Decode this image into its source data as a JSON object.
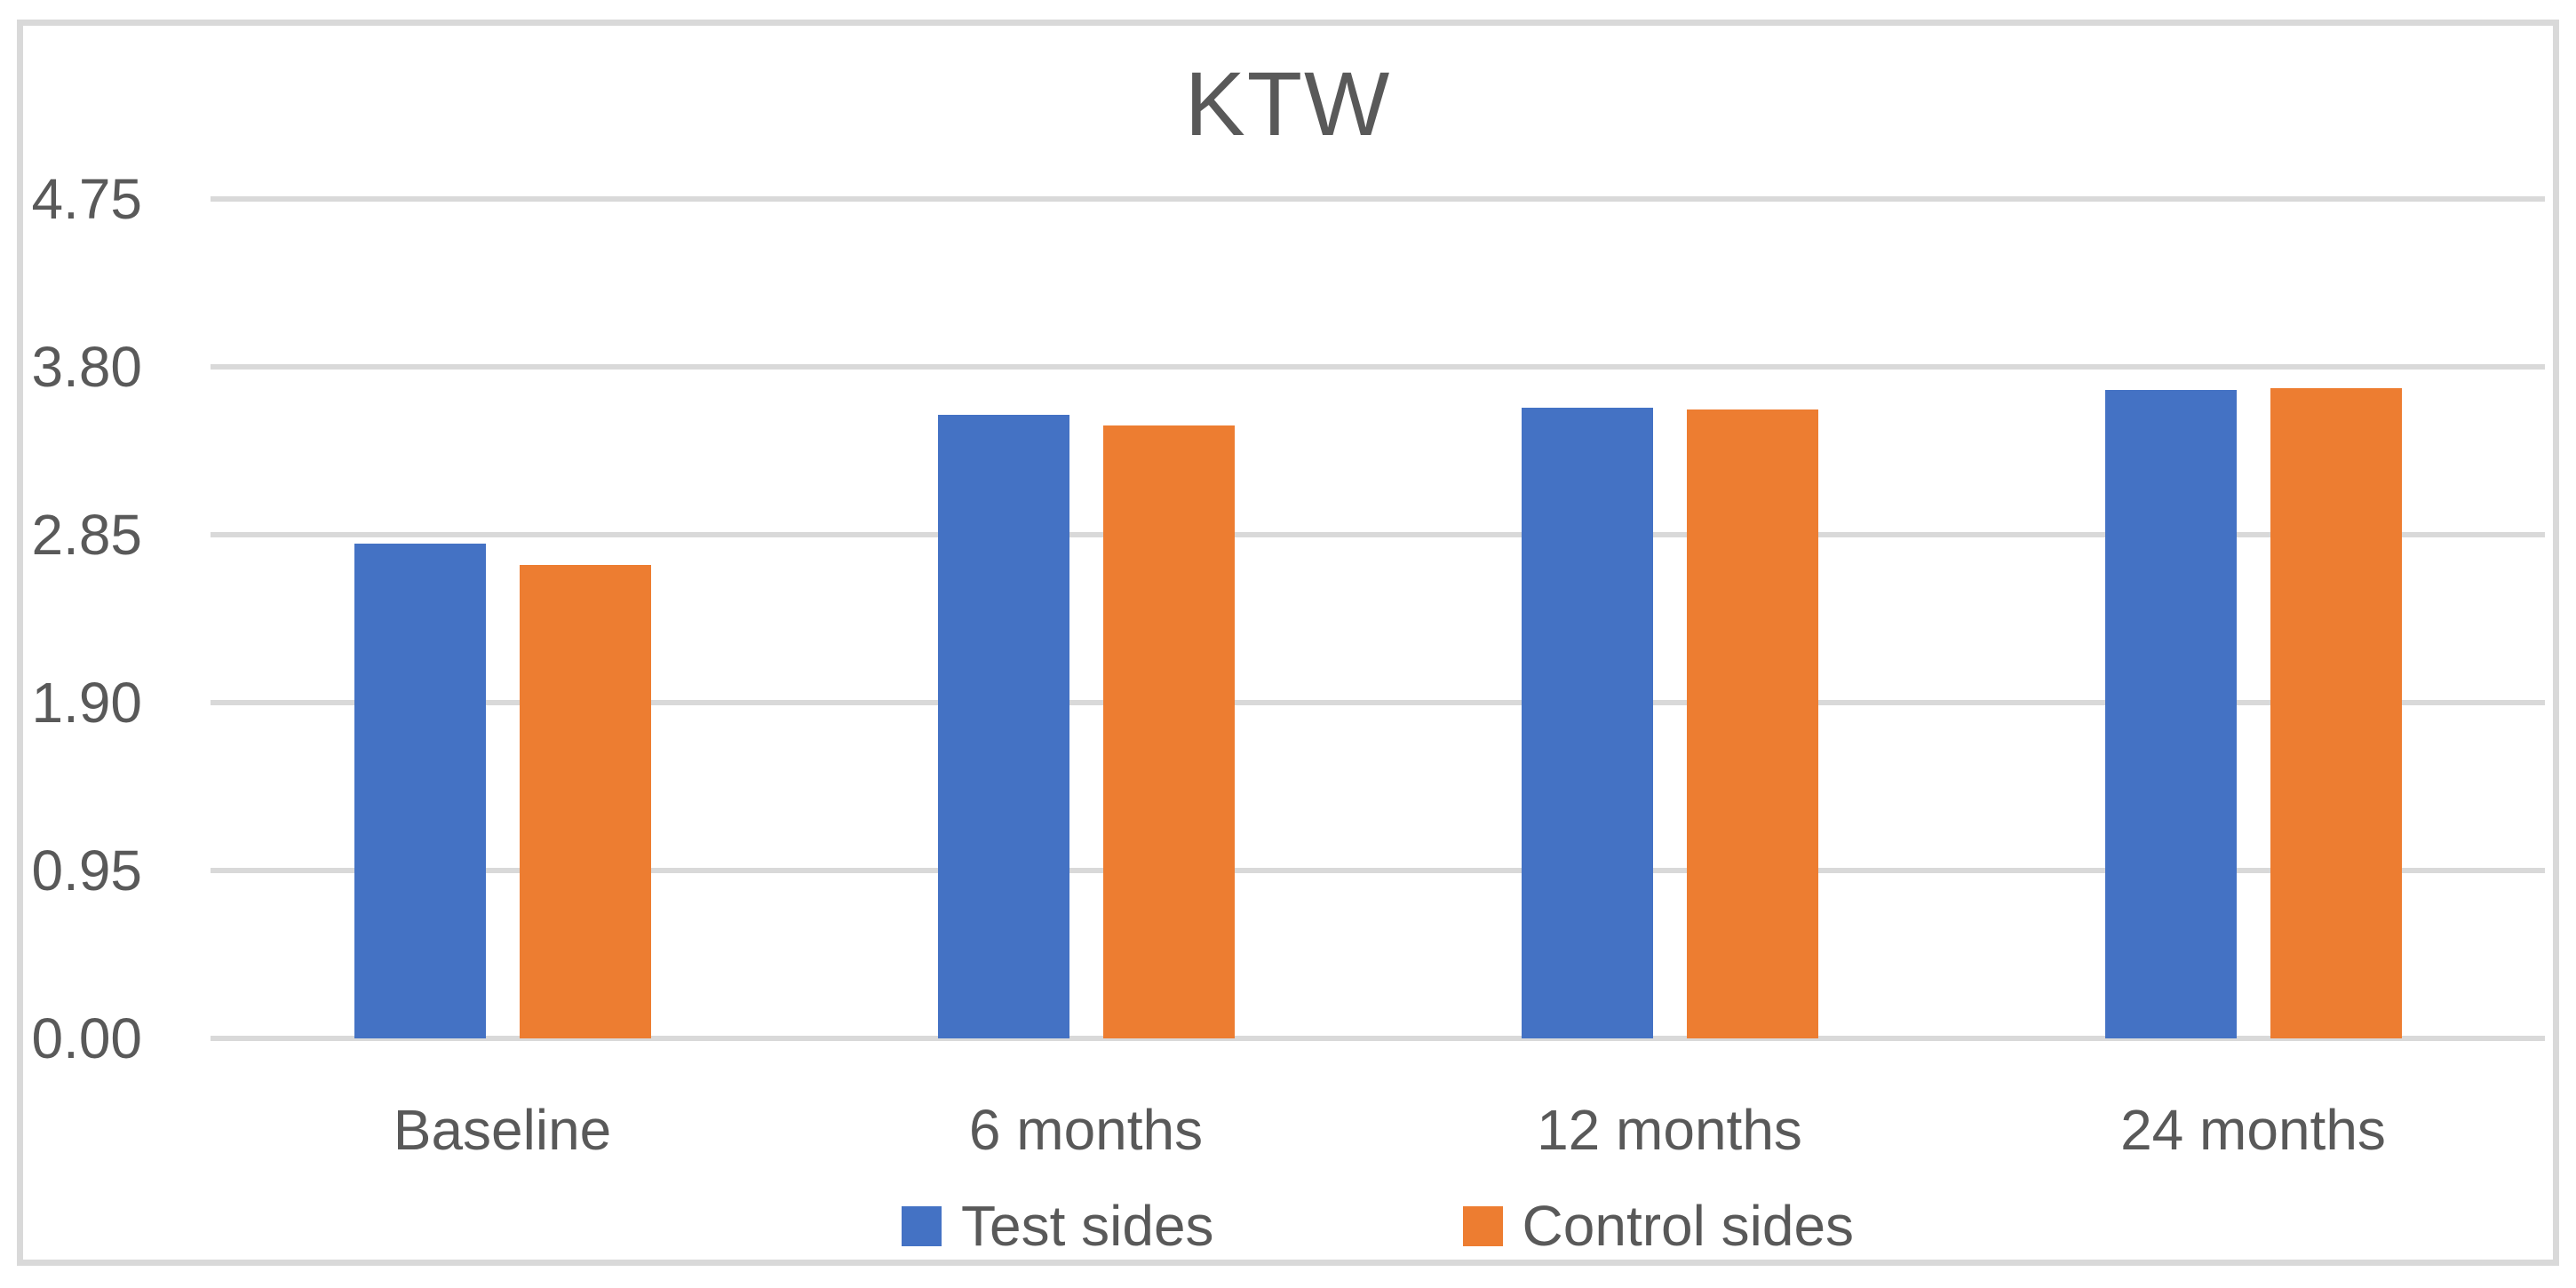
{
  "figure": {
    "title": "KTW"
  },
  "chart_data": {
    "type": "bar",
    "title": "KTW",
    "categories": [
      "Baseline",
      "6 months",
      "12 months",
      "24 months"
    ],
    "series": [
      {
        "name": "Test sides",
        "color": "#4472C4",
        "values": [
          2.8,
          3.53,
          3.57,
          3.67
        ]
      },
      {
        "name": "Control sides",
        "color": "#ED7D31",
        "values": [
          2.68,
          3.47,
          3.56,
          3.68
        ]
      }
    ],
    "y_axis": {
      "tick_labels": [
        "0.00",
        "0.95",
        "1.90",
        "2.85",
        "3.80",
        "4.75"
      ],
      "tick_values": [
        0,
        0.95,
        1.9,
        2.85,
        3.8,
        4.75
      ],
      "min": 0,
      "max": 4.75
    },
    "x_axis": {
      "tick_labels": [
        "Baseline",
        "6 months",
        "12 months",
        "24 months"
      ]
    },
    "legend": {
      "position": "bottom",
      "entries": [
        "Test sides",
        "Control sides"
      ]
    },
    "grid": "horizontal",
    "colors": {
      "grid": "#D9D9D9",
      "frame_border": "#D9D9D9",
      "text": "#595959",
      "background": "#FFFFFF"
    }
  }
}
